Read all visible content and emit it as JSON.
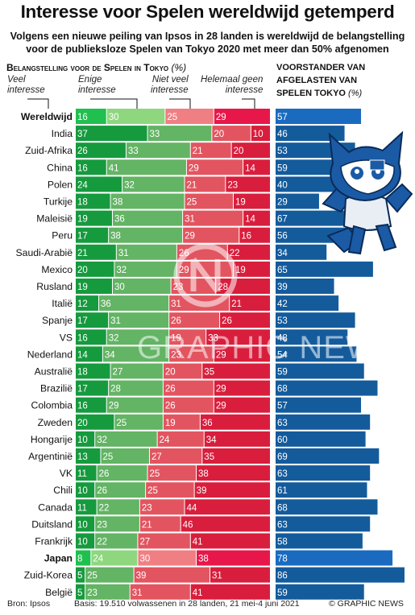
{
  "header": {
    "title": "Interesse voor Spelen wereldwijd getemperd",
    "subtitle_line1": "Volgens een nieuwe peiling van Ipsos in 28 landen is wereldwijd de belangstelling",
    "subtitle_line2": "voor de publieksloze Spelen van Tokyo 2020 met meer dan 50% afgenomen"
  },
  "section_left": {
    "title": "Belangstelling voor de Spelen in Tokyo",
    "unit": "(%)",
    "categories": [
      {
        "line1": "Veel",
        "line2": "interesse"
      },
      {
        "line1": "Enige",
        "line2": "interesse"
      },
      {
        "line1": "Niet veel",
        "line2": "interesse"
      },
      {
        "line1": "Helemaal geen",
        "line2": "interesse"
      }
    ]
  },
  "section_right": {
    "title_line1": "Voorstander van",
    "title_line2": "afgelasten van",
    "title_line3": "Spelen Tokyo",
    "unit": "(%)"
  },
  "footer": {
    "source": "Bron: Ipsos",
    "basis": "Basis: 19.510 volwassenen in 28 landen, 21 mei-4 juni 2021",
    "credit": "© GRAPHIC NEWS"
  },
  "watermark": "GRAPHIC NEWS",
  "colors": {
    "veel": "#169a3e",
    "enige": "#63b464",
    "niet_veel": "#e25560",
    "geen": "#d81e3c",
    "cancel": "#145b9c",
    "veel_hi": "#20c04f",
    "enige_hi": "#8ed77f",
    "niet_veel_hi": "#f07f84",
    "geen_hi": "#e8174a",
    "cancel_hi": "#1a6bc0"
  },
  "chart_data": {
    "type": "bar",
    "subtype": "stacked-horizontal-plus-horizontal",
    "categories": [
      "Wereldwijd",
      "India",
      "Zuid-Afrika",
      "China",
      "Polen",
      "Turkije",
      "Maleisië",
      "Peru",
      "Saudi-Arabië",
      "Mexico",
      "Rusland",
      "Italië",
      "Spanje",
      "VS",
      "Nederland",
      "Australië",
      "Brazilië",
      "Colombia",
      "Zweden",
      "Hongarije",
      "Argentinië",
      "VK",
      "Chili",
      "Canada",
      "Duitsland",
      "Frankrijk",
      "Japan",
      "Zuid-Korea",
      "België"
    ],
    "highlighted": [
      "Wereldwijd",
      "Japan"
    ],
    "series": [
      {
        "name": "Veel interesse",
        "values": [
          16,
          37,
          26,
          16,
          24,
          18,
          19,
          17,
          21,
          20,
          19,
          12,
          17,
          16,
          14,
          18,
          17,
          16,
          20,
          10,
          13,
          11,
          10,
          11,
          10,
          10,
          8,
          5,
          5
        ]
      },
      {
        "name": "Enige interesse",
        "values": [
          30,
          33,
          33,
          41,
          32,
          38,
          36,
          38,
          31,
          32,
          30,
          36,
          31,
          32,
          34,
          27,
          28,
          29,
          25,
          32,
          25,
          26,
          26,
          22,
          23,
          22,
          24,
          25,
          23
        ]
      },
      {
        "name": "Niet veel interesse",
        "values": [
          25,
          20,
          21,
          29,
          21,
          25,
          31,
          29,
          26,
          29,
          23,
          31,
          26,
          19,
          23,
          20,
          26,
          26,
          19,
          24,
          27,
          25,
          25,
          23,
          21,
          27,
          30,
          39,
          31
        ]
      },
      {
        "name": "Helemaal geen interesse",
        "values": [
          29,
          10,
          20,
          14,
          23,
          19,
          14,
          16,
          22,
          19,
          28,
          21,
          26,
          33,
          29,
          35,
          29,
          29,
          36,
          34,
          35,
          38,
          39,
          44,
          46,
          41,
          38,
          31,
          41
        ]
      },
      {
        "name": "Voorstander van afgelasten van Spelen Tokyo",
        "values": [
          57,
          46,
          53,
          59,
          40,
          29,
          67,
          56,
          34,
          65,
          39,
          42,
          53,
          48,
          54,
          59,
          68,
          57,
          63,
          60,
          69,
          63,
          61,
          68,
          63,
          58,
          78,
          86,
          59
        ]
      }
    ],
    "xlim_interest": [
      0,
      100
    ],
    "xlim_cancel": [
      0,
      100
    ],
    "unit": "%"
  }
}
